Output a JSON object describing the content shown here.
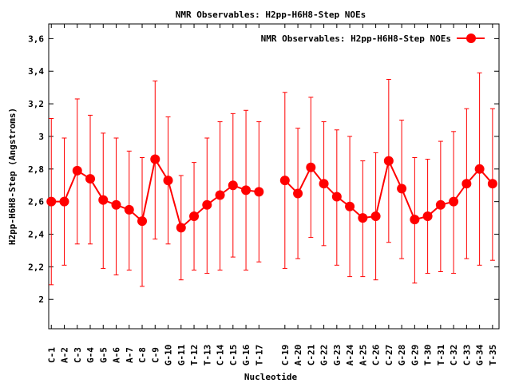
{
  "chart_data": {
    "type": "line",
    "title": "NMR Observables: H2pp-H6H8-Step NOEs",
    "xlabel": "Nucleotide",
    "ylabel": "H2pp-H6H8-Step (Angstroms)",
    "ylim": [
      1.82,
      3.69
    ],
    "xlim": [
      0.8,
      35.5
    ],
    "yticks": [
      2,
      2.2,
      2.4,
      2.6,
      2.8,
      3,
      3.2,
      3.4,
      3.6
    ],
    "ytick_labels": [
      "2",
      "2,2",
      "2,4",
      "2,6",
      "2,8",
      "3",
      "3,2",
      "3,4",
      "3,6"
    ],
    "grid": false,
    "legend_position": "top-right",
    "series": [
      {
        "name": "NMR Observables: H2pp-H6H8-Step NOEs",
        "color": "#ff0000",
        "points": [
          {
            "x": 1,
            "label": "C-1",
            "y": 2.6,
            "lo": 2.09,
            "hi": 3.11
          },
          {
            "x": 2,
            "label": "A-2",
            "y": 2.6,
            "lo": 2.21,
            "hi": 2.99
          },
          {
            "x": 3,
            "label": "C-3",
            "y": 2.79,
            "lo": 2.34,
            "hi": 3.23
          },
          {
            "x": 4,
            "label": "G-4",
            "y": 2.74,
            "lo": 2.34,
            "hi": 3.13
          },
          {
            "x": 5,
            "label": "G-5",
            "y": 2.61,
            "lo": 2.19,
            "hi": 3.02
          },
          {
            "x": 6,
            "label": "A-6",
            "y": 2.58,
            "lo": 2.15,
            "hi": 2.99
          },
          {
            "x": 7,
            "label": "A-7",
            "y": 2.55,
            "lo": 2.18,
            "hi": 2.91
          },
          {
            "x": 8,
            "label": "C-8",
            "y": 2.48,
            "lo": 2.08,
            "hi": 2.87
          },
          {
            "x": 9,
            "label": "C-9",
            "y": 2.86,
            "lo": 2.37,
            "hi": 3.34
          },
          {
            "x": 10,
            "label": "G-10",
            "y": 2.73,
            "lo": 2.34,
            "hi": 3.12
          },
          {
            "x": 11,
            "label": "G-11",
            "y": 2.44,
            "lo": 2.12,
            "hi": 2.76
          },
          {
            "x": 12,
            "label": "T-12",
            "y": 2.51,
            "lo": 2.18,
            "hi": 2.84
          },
          {
            "x": 13,
            "label": "T-13",
            "y": 2.58,
            "lo": 2.16,
            "hi": 2.99
          },
          {
            "x": 14,
            "label": "C-14",
            "y": 2.64,
            "lo": 2.18,
            "hi": 3.09
          },
          {
            "x": 15,
            "label": "C-15",
            "y": 2.7,
            "lo": 2.26,
            "hi": 3.14
          },
          {
            "x": 16,
            "label": "G-16",
            "y": 2.67,
            "lo": 2.18,
            "hi": 3.16
          },
          {
            "x": 17,
            "label": "T-17",
            "y": 2.66,
            "lo": 2.23,
            "hi": 3.09
          },
          {
            "x": 19,
            "label": "C-19",
            "y": 2.73,
            "lo": 2.19,
            "hi": 3.27
          },
          {
            "x": 20,
            "label": "A-20",
            "y": 2.65,
            "lo": 2.25,
            "hi": 3.05
          },
          {
            "x": 21,
            "label": "C-21",
            "y": 2.81,
            "lo": 2.38,
            "hi": 3.24
          },
          {
            "x": 22,
            "label": "G-22",
            "y": 2.71,
            "lo": 2.33,
            "hi": 3.09
          },
          {
            "x": 23,
            "label": "G-23",
            "y": 2.63,
            "lo": 2.21,
            "hi": 3.04
          },
          {
            "x": 24,
            "label": "A-24",
            "y": 2.57,
            "lo": 2.14,
            "hi": 3.0
          },
          {
            "x": 25,
            "label": "A-25",
            "y": 2.5,
            "lo": 2.14,
            "hi": 2.85
          },
          {
            "x": 26,
            "label": "C-26",
            "y": 2.51,
            "lo": 2.12,
            "hi": 2.9
          },
          {
            "x": 27,
            "label": "C-27",
            "y": 2.85,
            "lo": 2.35,
            "hi": 3.35
          },
          {
            "x": 28,
            "label": "G-28",
            "y": 2.68,
            "lo": 2.25,
            "hi": 3.1
          },
          {
            "x": 29,
            "label": "G-29",
            "y": 2.49,
            "lo": 2.1,
            "hi": 2.87
          },
          {
            "x": 30,
            "label": "T-30",
            "y": 2.51,
            "lo": 2.16,
            "hi": 2.86
          },
          {
            "x": 31,
            "label": "T-31",
            "y": 2.58,
            "lo": 2.17,
            "hi": 2.97
          },
          {
            "x": 32,
            "label": "C-32",
            "y": 2.6,
            "lo": 2.16,
            "hi": 3.03
          },
          {
            "x": 33,
            "label": "C-33",
            "y": 2.71,
            "lo": 2.25,
            "hi": 3.17
          },
          {
            "x": 34,
            "label": "G-34",
            "y": 2.8,
            "lo": 2.21,
            "hi": 3.39
          },
          {
            "x": 35,
            "label": "T-35",
            "y": 2.71,
            "lo": 2.24,
            "hi": 3.17
          }
        ]
      }
    ]
  }
}
